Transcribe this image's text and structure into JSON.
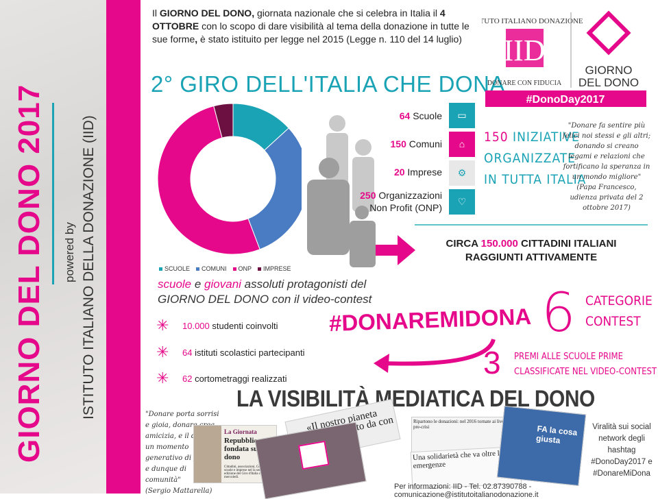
{
  "sidebar": {
    "title": "GIORNO DEL DONO 2017",
    "powered_by": "powered by",
    "org": "ISTITUTO ITALIANO DELLA DONAZIONE (IID)"
  },
  "intro": {
    "p1": "Il ",
    "b1": "GIORNO DEL DONO,",
    "p2": " giornata nazionale che si celebra in Italia il ",
    "b2": "4 OTTOBRE",
    "p3": " con lo scopo di dare visibilità al tema della donazione in tutte le sue forme",
    "b3": ",",
    "p4": " è stato istituito per legge nel 2015 (Legge n. 110 del 14 luglio)"
  },
  "heading": "2° GIRO DELL'ITALIA CHE DONA",
  "logo": {
    "iid_ring": "ISTITUTO ITALIANO DONAZIONE",
    "iid_mark": "IID",
    "motto": "DONARE CON FIDUCIA",
    "giorno": "GIORNO",
    "del_dono": "DEL DONO",
    "hashtag": "#DonoDay2017"
  },
  "stats": [
    {
      "num": "64",
      "label": "Scuole",
      "icon": "book-icon",
      "tile": "SCUOLE",
      "color": "#1aa3b5"
    },
    {
      "num": "150",
      "label": "Comuni",
      "icon": "building-icon",
      "tile": "COMUNI",
      "color": "#e6088a"
    },
    {
      "num": "20",
      "label": "Imprese",
      "icon": "gears-icon",
      "tile": "IMPRESE",
      "color": "#e8e8e8"
    },
    {
      "num": "250",
      "label": "Organizzazioni Non Profit (ONP)",
      "icon": "heart-icon",
      "tile": "NON PROFIT",
      "color": "#1aa3b5"
    }
  ],
  "iniziative": {
    "l1_num": "150",
    "l1": " INIZIATIVE",
    "l2": "ORGANIZZATE",
    "l3": "IN TUTTA ITALIA"
  },
  "quote_pope": {
    "text": "\"Donare fa sentire più felici noi stessi e gli altri; donando si creano legami e relazioni che fortificano la speranza in un mondo migliore\"",
    "source": "(Papa Francesco, udienza privata del 2 ottobre 2017)"
  },
  "circa": {
    "pre": "CIRCA ",
    "num": "150.000",
    "post": " CITTADINI ITALIANI",
    "l2": "RAGGIUNTI ATTIVAMENTE"
  },
  "chart_data": {
    "type": "pie",
    "donut": true,
    "categories": [
      "SCUOLE",
      "COMUNI",
      "ONP",
      "IMPRESE"
    ],
    "values": [
      64,
      150,
      250,
      20
    ],
    "colors": [
      "#1aa3b5",
      "#4a7cc4",
      "#e6088a",
      "#6b1040"
    ],
    "legend": "bottom"
  },
  "protag": {
    "w1": "scuole",
    "w2": " e ",
    "w3": "giovani",
    "w4": " assoluti protagonisti del",
    "l2": "GIORNO DEL DONO con il video-contest"
  },
  "bullets": [
    {
      "num": "10.000",
      "text": " studenti coinvolti"
    },
    {
      "num": "64",
      "text": " istituti scolastici partecipanti"
    },
    {
      "num": "62",
      "text": " cortometraggi realizzati"
    }
  ],
  "contest": {
    "hashtag": "#DONAREMIDONA",
    "six": "6",
    "cat1": "CATEGORIE",
    "cat2": "CONTEST",
    "three": "3",
    "premi1": "PREMI ALLE SCUOLE PRIME",
    "premi2": "CLASSIFICATE NEL VIDEO-CONTEST"
  },
  "media": {
    "title": "LA VISIBILITÀ MEDIATICA DEL DONO",
    "quote": "\"Donare porta sorrisi e gioia, donare crea amicizia, e il dono è un momento generativo di fiducia, e dunque di comunità\"",
    "quote_source": "(Sergio Mattarella)",
    "clip1_head": "La Giornata",
    "clip1_title": "Repubblica fondata sul dono",
    "clip1_body": "Cittadini, associazioni, Comuni, scuole e imprese nel la seconda edizione del Giro d'Italia che dona, mercoledì.",
    "clip2": "«Il nostro pianeta dono ricevuto da con",
    "clip3": "Ripartono le donazioni: nel 2016 tornate ai livelli pre-crisi",
    "clip4": "Una solidarietà che va oltre le emergenze",
    "tv_caption": "FA la cosa giusta",
    "viral": "Viralità sui social network degli hashtag #DonoDay2017 e #DonareMiDona"
  },
  "footer": "Per informazioni: IID - Tel. 02.87390788 - comunicazione@istitutoitalianodonazione.it"
}
